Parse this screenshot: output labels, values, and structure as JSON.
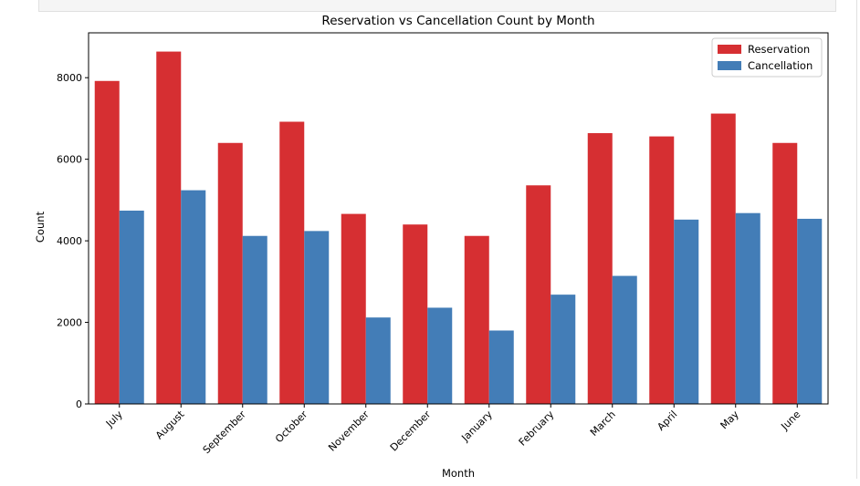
{
  "chart_data": {
    "type": "bar",
    "title": "Reservation vs Cancellation Count by Month",
    "xlabel": "Month",
    "ylabel": "Count",
    "ylim": [
      0,
      9100
    ],
    "yticks": [
      0,
      2000,
      4000,
      6000,
      8000
    ],
    "legend_position": "top-right",
    "grid": false,
    "categories": [
      "July",
      "August",
      "September",
      "October",
      "November",
      "December",
      "January",
      "February",
      "March",
      "April",
      "May",
      "June"
    ],
    "series": [
      {
        "name": "Reservation",
        "color": "#d62f32",
        "values": [
          7920,
          8640,
          6400,
          6920,
          4660,
          4400,
          4120,
          5360,
          6640,
          6560,
          7120,
          6400
        ]
      },
      {
        "name": "Cancellation",
        "color": "#437db7",
        "values": [
          4740,
          5240,
          4120,
          4240,
          2120,
          2360,
          1800,
          2680,
          3140,
          4520,
          4680,
          4540
        ]
      }
    ]
  }
}
